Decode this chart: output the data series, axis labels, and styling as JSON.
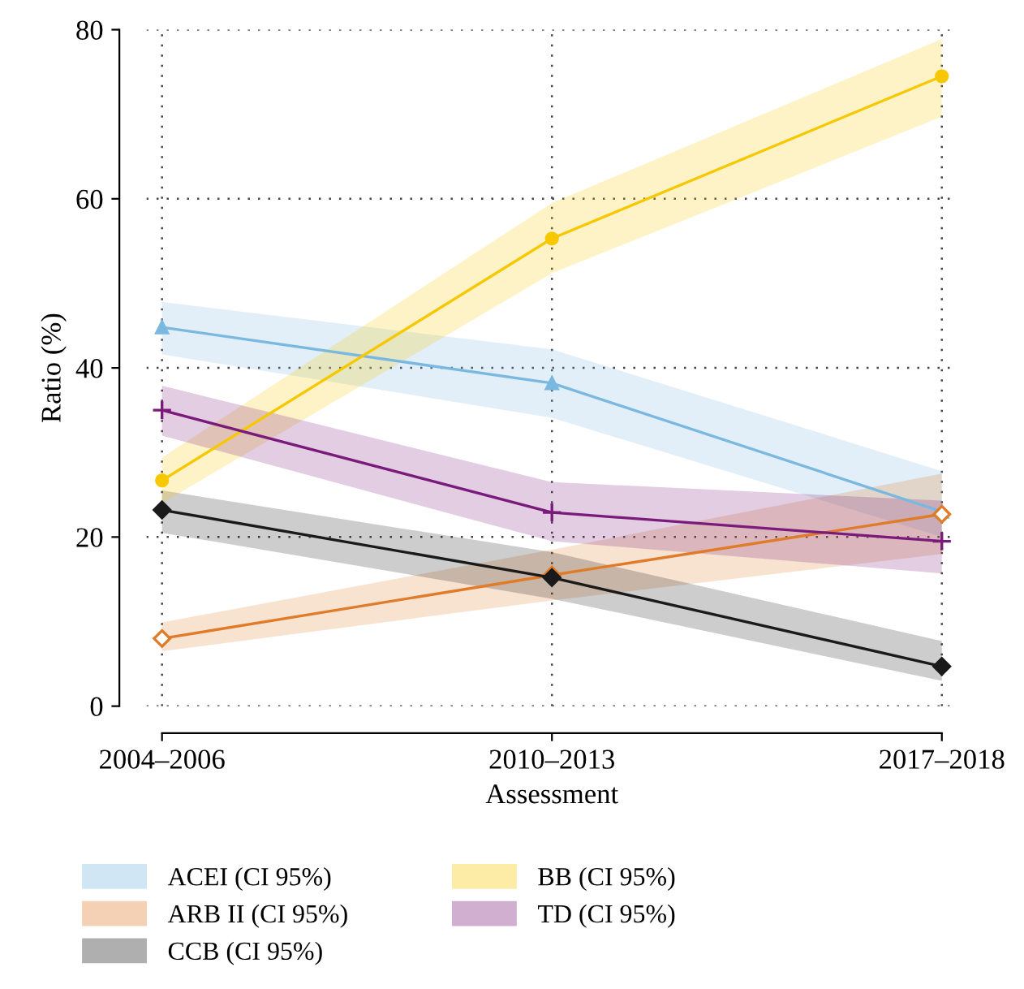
{
  "chart_data": {
    "type": "line",
    "xlabel": "Assessment",
    "ylabel": "Ratio (%)",
    "categories": [
      "2004–2006",
      "2010–2013",
      "2017–2018"
    ],
    "ylim": [
      0,
      80
    ],
    "yticks": [
      0,
      20,
      40,
      60,
      80
    ],
    "grid": true,
    "legend": "bottom",
    "line_style": "solid",
    "series": [
      {
        "name": "ACEI (CI 95%)",
        "color": "#7ab8e0",
        "marker": "triangle",
        "values": [
          44.8,
          38.2,
          23.0
        ],
        "lower": [
          41.6,
          34.1,
          20.0
        ],
        "upper": [
          47.8,
          42.2,
          27.8
        ]
      },
      {
        "name": "ARB II (CI 95%)",
        "color": "#e07b2a",
        "marker": "diamond",
        "values": [
          8.0,
          15.5,
          22.7
        ],
        "lower": [
          6.5,
          12.5,
          18.0
        ],
        "upper": [
          9.9,
          18.5,
          27.5
        ]
      },
      {
        "name": "CCB (CI 95%)",
        "color": "#1a1a1a",
        "marker": "diamond",
        "values": [
          23.2,
          15.2,
          4.7
        ],
        "lower": [
          20.5,
          12.7,
          3.0
        ],
        "upper": [
          25.5,
          18.2,
          7.7
        ]
      },
      {
        "name": "BB (CI 95%)",
        "color": "#f7c800",
        "marker": "circle",
        "values": [
          26.7,
          55.3,
          74.5
        ],
        "lower": [
          24.0,
          51.2,
          69.7
        ],
        "upper": [
          29.4,
          59.5,
          78.9
        ]
      },
      {
        "name": "TD (CI 95%)",
        "color": "#7a1a7a",
        "marker": "cross",
        "values": [
          35.0,
          22.9,
          19.5
        ],
        "lower": [
          32.0,
          19.5,
          15.7
        ],
        "upper": [
          37.9,
          26.5,
          24.3
        ]
      }
    ]
  }
}
